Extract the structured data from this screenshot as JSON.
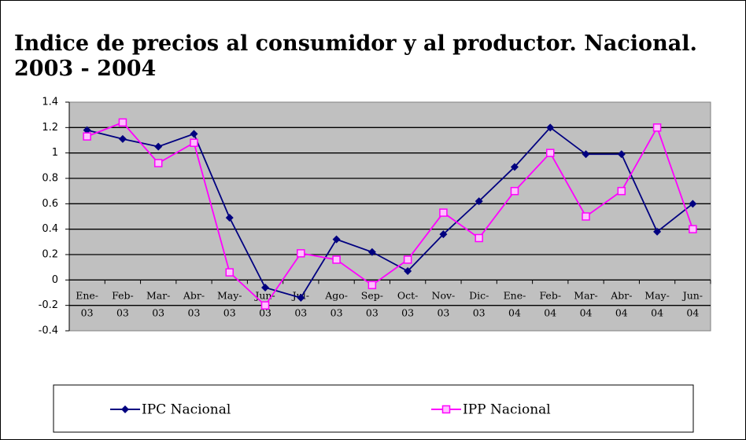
{
  "chart_data": {
    "type": "line",
    "title": "Indice de precios al consumidor y al productor. Nacional. 2003 - 2004",
    "categories": [
      "Ene-03",
      "Feb-03",
      "Mar-03",
      "Abr-03",
      "May-03",
      "Jun-03",
      "Jul-03",
      "Ago-03",
      "Sep-03",
      "Oct-03",
      "Nov-03",
      "Dic-03",
      "Ene-04",
      "Feb-04",
      "Mar-04",
      "Abr-04",
      "May-04",
      "Jun-04"
    ],
    "series": [
      {
        "name": "IPC Nacional",
        "color": "#000080",
        "values": [
          1.18,
          1.11,
          1.05,
          1.15,
          0.49,
          -0.06,
          -0.14,
          0.32,
          0.22,
          0.07,
          0.36,
          0.62,
          0.89,
          1.2,
          0.99,
          0.99,
          0.38,
          0.6
        ]
      },
      {
        "name": "IPP Nacional",
        "color": "#ff00ff",
        "values": [
          1.13,
          1.24,
          0.92,
          1.08,
          0.06,
          -0.2,
          0.21,
          0.16,
          -0.04,
          0.16,
          0.53,
          0.33,
          0.7,
          1.0,
          0.5,
          0.7,
          1.2,
          0.4
        ]
      }
    ],
    "ylim": [
      -0.4,
      1.4
    ],
    "yticks": [
      -0.4,
      -0.2,
      0,
      0.2,
      0.4,
      0.6,
      0.8,
      1,
      1.2,
      1.4
    ],
    "grid": true,
    "legend": "bottom"
  }
}
